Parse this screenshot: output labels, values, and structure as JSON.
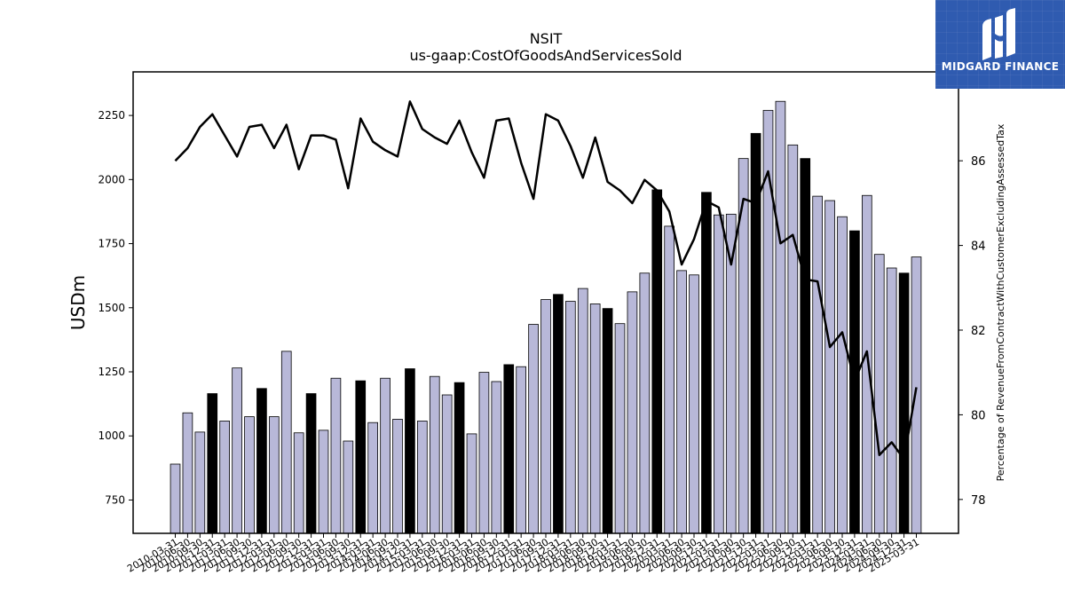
{
  "brand": {
    "name": "MIDGARD FINANCE",
    "logo_icon": "midgard-m-logo-icon",
    "background": "#2f5bb0"
  },
  "chart_data": {
    "type": "bar",
    "title": "NSIT",
    "subtitle": "us-gaap:CostOfGoodsAndServicesSold",
    "ylabel": "USDm",
    "y2label": "Percentage of RevenueFromContractWithCustomerExcludingAssessedTax",
    "ylim": [
      620,
      2420
    ],
    "y_ticks": [
      750,
      1000,
      1250,
      1500,
      1750,
      2000,
      2250
    ],
    "y2lim": [
      77.2,
      88.1
    ],
    "y2_ticks": [
      78,
      80,
      82,
      84,
      86
    ],
    "categories": [
      "2010-03-31",
      "2010-06-30",
      "2010-09-30",
      "2010-12-31",
      "2011-03-31",
      "2011-06-30",
      "2011-09-30",
      "2011-12-31",
      "2012-03-31",
      "2012-06-30",
      "2012-09-30",
      "2012-12-31",
      "2013-03-31",
      "2013-06-30",
      "2013-09-30",
      "2013-12-31",
      "2014-03-31",
      "2014-06-30",
      "2014-09-30",
      "2014-12-31",
      "2015-03-31",
      "2015-06-30",
      "2015-09-30",
      "2015-12-31",
      "2016-03-31",
      "2016-06-30",
      "2016-09-30",
      "2016-12-31",
      "2017-03-31",
      "2017-06-30",
      "2017-09-30",
      "2017-12-31",
      "2018-03-31",
      "2018-06-30",
      "2018-09-30",
      "2018-12-31",
      "2019-03-31",
      "2019-06-30",
      "2019-09-30",
      "2019-12-31",
      "2020-03-31",
      "2020-06-30",
      "2020-09-30",
      "2020-12-31",
      "2021-03-31",
      "2021-06-30",
      "2021-09-30",
      "2021-12-31",
      "2022-03-31",
      "2022-06-30",
      "2022-09-30",
      "2022-12-31",
      "2023-03-31",
      "2023-06-30",
      "2023-09-30",
      "2023-12-31",
      "2024-03-31",
      "2024-06-30",
      "2024-09-30",
      "2024-12-31",
      "2025-03-31"
    ],
    "highlight_every": 4,
    "highlight_offset": 3,
    "colors": {
      "bar": "#b8b8d8",
      "bar_highlight": "#000000",
      "bar_edge": "#000000",
      "line": "#000000"
    },
    "series": [
      {
        "type": "bar",
        "axis": "left",
        "values": [
          890,
          1090,
          1015,
          1165,
          1058,
          1265,
          1075,
          1185,
          1075,
          1330,
          1012,
          1165,
          1022,
          1225,
          980,
          1215,
          1052,
          1225,
          1065,
          1262,
          1058,
          1232,
          1160,
          1208,
          1008,
          1248,
          1212,
          1278,
          1270,
          1435,
          1532,
          1552,
          1525,
          1575,
          1515,
          1497,
          1438,
          1562,
          1635,
          1960,
          1818,
          1645,
          1628,
          1950,
          1862,
          1865,
          2082,
          2180,
          2270,
          2305,
          2135,
          2082,
          1935,
          1918,
          1855,
          1800,
          1938,
          1708,
          1655,
          1635,
          1698
        ]
      },
      {
        "type": "line",
        "axis": "right",
        "values": [
          86.0,
          86.3,
          86.8,
          87.1,
          86.6,
          86.1,
          86.8,
          86.85,
          86.3,
          86.85,
          85.8,
          86.6,
          86.6,
          86.5,
          85.35,
          87.0,
          86.45,
          86.25,
          86.1,
          87.4,
          86.75,
          86.55,
          86.4,
          86.95,
          86.2,
          85.6,
          86.95,
          87.0,
          85.95,
          85.1,
          87.1,
          86.95,
          86.35,
          85.6,
          86.55,
          85.5,
          85.3,
          85.0,
          85.55,
          85.3,
          84.8,
          83.55,
          84.15,
          85.05,
          84.9,
          83.55,
          85.1,
          85.0,
          85.75,
          84.05,
          84.25,
          83.2,
          83.15,
          81.6,
          81.95,
          80.8,
          81.5,
          79.05,
          79.35,
          78.95,
          80.65
        ]
      }
    ]
  }
}
